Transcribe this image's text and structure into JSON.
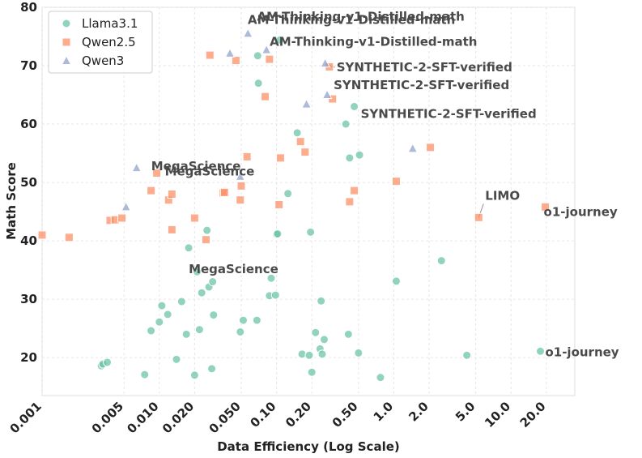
{
  "chart_data": {
    "type": "scatter",
    "title": "",
    "xlabel": "Data Efficiency (Log Scale)",
    "ylabel": "Math Score",
    "x_scale": "log",
    "xlim": [
      0.001,
      35
    ],
    "ylim": [
      13.5,
      80
    ],
    "grid": true,
    "legend_position": "top-left",
    "x_ticks": [
      0.001,
      0.005,
      0.01,
      0.02,
      0.05,
      0.1,
      0.2,
      0.5,
      1.0,
      2.0,
      5.0,
      10.0,
      20.0
    ],
    "x_tick_labels": [
      "0.001",
      "0.005",
      "0.010",
      "0.020",
      "0.050",
      "0.10",
      "0.20",
      "0.50",
      "1.0",
      "2.0",
      "5.0",
      "10.0",
      "20.0"
    ],
    "y_ticks": [
      20,
      30,
      40,
      50,
      60,
      70,
      80
    ],
    "y_tick_labels": [
      "20",
      "30",
      "40",
      "50",
      "60",
      "70",
      "80"
    ],
    "series": [
      {
        "name": "Llama3.1",
        "color": "#66c2a5",
        "marker": "circle",
        "points": [
          [
            0.0032,
            18.6
          ],
          [
            0.0033,
            18.9
          ],
          [
            0.0036,
            19.2
          ],
          [
            0.0075,
            17.1
          ],
          [
            0.0085,
            24.6
          ],
          [
            0.01,
            26.1
          ],
          [
            0.0105,
            28.9
          ],
          [
            0.0118,
            27.4
          ],
          [
            0.014,
            19.7
          ],
          [
            0.0155,
            29.6
          ],
          [
            0.017,
            24.0
          ],
          [
            0.0178,
            38.8
          ],
          [
            0.02,
            17.0
          ],
          [
            0.021,
            34.7
          ],
          [
            0.022,
            24.8
          ],
          [
            0.023,
            31.1
          ],
          [
            0.0255,
            41.8
          ],
          [
            0.0265,
            32.1
          ],
          [
            0.028,
            18.1
          ],
          [
            0.0285,
            33.0
          ],
          [
            0.029,
            27.3
          ],
          [
            0.049,
            24.4
          ],
          [
            0.052,
            26.4
          ],
          [
            0.068,
            26.4
          ],
          [
            0.069,
            71.7
          ],
          [
            0.07,
            67.0
          ],
          [
            0.087,
            30.6
          ],
          [
            0.09,
            33.6
          ],
          [
            0.098,
            30.7
          ],
          [
            0.1,
            41.1
          ],
          [
            0.102,
            41.2
          ],
          [
            0.107,
            74.4
          ],
          [
            0.125,
            48.1
          ],
          [
            0.15,
            58.5
          ],
          [
            0.165,
            20.6
          ],
          [
            0.19,
            20.4
          ],
          [
            0.195,
            41.5
          ],
          [
            0.2,
            17.5
          ],
          [
            0.215,
            24.3
          ],
          [
            0.235,
            21.5
          ],
          [
            0.24,
            29.7
          ],
          [
            0.245,
            20.6
          ],
          [
            0.255,
            23.1
          ],
          [
            0.39,
            60.0
          ],
          [
            0.41,
            24.0
          ],
          [
            0.42,
            54.2
          ],
          [
            0.46,
            63.0
          ],
          [
            0.5,
            20.8
          ],
          [
            0.51,
            54.7
          ],
          [
            0.77,
            16.6
          ],
          [
            1.05,
            33.1
          ],
          [
            2.55,
            36.6
          ],
          [
            4.2,
            20.4
          ],
          [
            17.8,
            21.1
          ]
        ]
      },
      {
        "name": "Qwen2.5",
        "color": "#fc8d62",
        "marker": "square",
        "points": [
          [
            0.001,
            41.0
          ],
          [
            0.0017,
            40.6
          ],
          [
            0.0038,
            43.5
          ],
          [
            0.0042,
            43.6
          ],
          [
            0.0048,
            43.9
          ],
          [
            0.0085,
            48.6
          ],
          [
            0.0095,
            51.6
          ],
          [
            0.012,
            47.0
          ],
          [
            0.0128,
            48.0
          ],
          [
            0.0128,
            41.9
          ],
          [
            0.02,
            43.9
          ],
          [
            0.025,
            40.2
          ],
          [
            0.027,
            71.8
          ],
          [
            0.035,
            48.2
          ],
          [
            0.036,
            48.3
          ],
          [
            0.045,
            70.9
          ],
          [
            0.049,
            47.0
          ],
          [
            0.05,
            49.4
          ],
          [
            0.056,
            54.4
          ],
          [
            0.08,
            64.7
          ],
          [
            0.087,
            71.1
          ],
          [
            0.105,
            46.2
          ],
          [
            0.108,
            54.2
          ],
          [
            0.16,
            57.0
          ],
          [
            0.175,
            55.2
          ],
          [
            0.282,
            69.8
          ],
          [
            0.3,
            64.3
          ],
          [
            0.42,
            46.7
          ],
          [
            0.46,
            48.6
          ],
          [
            1.05,
            50.2
          ],
          [
            2.05,
            56.0
          ],
          [
            5.3,
            44.0
          ],
          [
            19.6,
            45.8
          ]
        ]
      },
      {
        "name": "Qwen3",
        "color": "#8da0cb",
        "marker": "triangle",
        "points": [
          [
            0.0052,
            45.8
          ],
          [
            0.0064,
            52.5
          ],
          [
            0.04,
            72.1
          ],
          [
            0.049,
            51.0
          ],
          [
            0.057,
            75.5
          ],
          [
            0.082,
            72.7
          ],
          [
            0.18,
            63.4
          ],
          [
            0.26,
            70.4
          ],
          [
            0.27,
            65.0
          ],
          [
            1.45,
            55.8
          ]
        ]
      }
    ],
    "annotations": [
      {
        "text": "AM-Thinking-v1-Distilled-math",
        "x": 0.066,
        "y": 77.3
      },
      {
        "text": "AM-Thinking-v1-Distilled-math",
        "x": 0.055,
        "y": 75.5
      },
      {
        "text": "AM-Thinking-v1-Distilled-math",
        "x": 0.082,
        "y": 72.7
      },
      {
        "text": "SYNTHETIC-2-SFT-verified",
        "x": 0.26,
        "y": 70.4
      },
      {
        "text": "SYNTHETIC-2-SFT-verified",
        "x": 0.27,
        "y": 65.0
      },
      {
        "text": "SYNTHETIC-2-SFT-verified",
        "x": 0.46,
        "y": 63.0
      },
      {
        "text": "MegaScience",
        "x": 0.0064,
        "y": 52.5
      },
      {
        "text": "MegaScience",
        "x": 0.0095,
        "y": 51.6
      },
      {
        "text": "MegaScience",
        "x": 0.0265,
        "y": 38.8
      },
      {
        "text": "LIMO",
        "x": 5.3,
        "y": 44.0
      },
      {
        "text": "o1-journey",
        "x": 19.6,
        "y": 45.8
      },
      {
        "text": "o1-journey",
        "x": 17.8,
        "y": 21.1
      }
    ]
  }
}
